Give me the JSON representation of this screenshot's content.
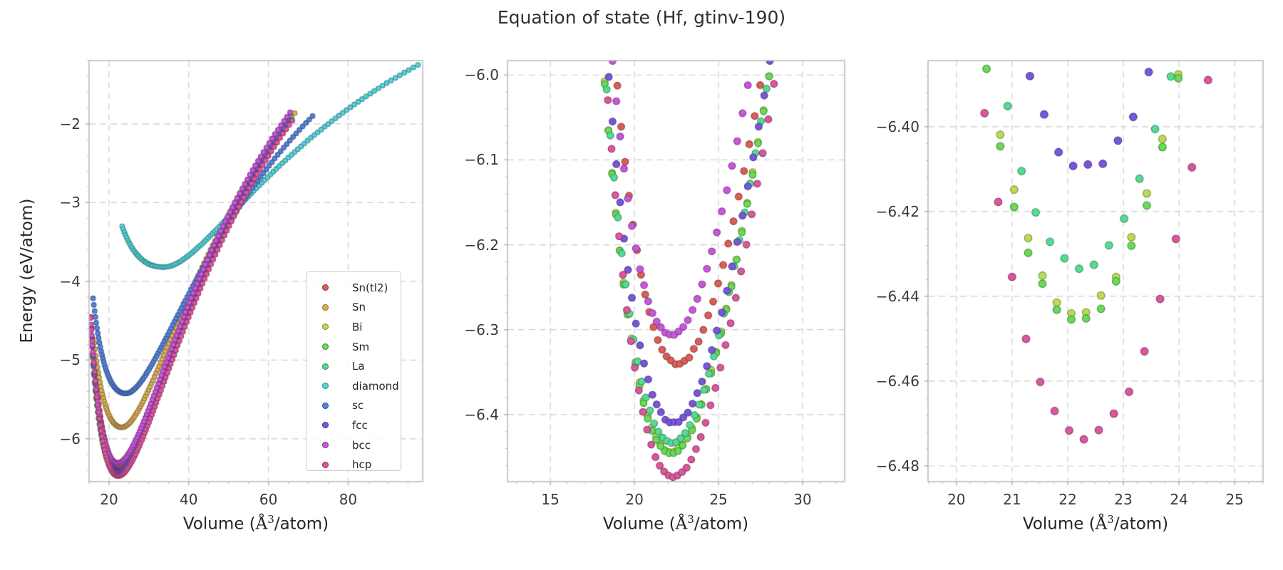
{
  "title": "Equation of state (Hf, gtinv-190)",
  "colors": {
    "background": "#ffffff",
    "text": "#262626",
    "grid": "#cdcdcd",
    "spine": "#b8b8b8",
    "tick_mark": "#a8a8a8"
  },
  "chart_data": {
    "type": "scatter",
    "title": "Equation of state (Hf, gtinv-190)",
    "ylabel": "Energy (eV/atom)",
    "xlabel": "Volume (Å³/atom)",
    "xlabel_parts": {
      "pre": "Volume (",
      "ang": "Å",
      "sup": "3",
      "post": "/atom)"
    },
    "grid": "dashed, on major ticks",
    "legend": {
      "location": "lower right of first subplot",
      "entries": [
        "Sn(tl2)",
        "Sn",
        "Bi",
        "Sm",
        "La",
        "diamond",
        "sc",
        "fcc",
        "bcc",
        "hcp"
      ]
    },
    "sampling": {
      "volume_step_pct": 1.2,
      "noise_amp_eV": 0.0012
    },
    "series": [
      {
        "name": "Sn(tl2)",
        "color": "#db5f57",
        "V0": 22.6,
        "E0": -6.34,
        "CL": 9.0,
        "CR": 10.4,
        "V_start": 15.5,
        "V_end": 66.2
      },
      {
        "name": "Sn",
        "color": "#dbae57",
        "V0": 23.2,
        "E0": -5.855,
        "CL": 6.0,
        "CR": 9.4,
        "V_start": 16.3,
        "V_end": 66.8
      },
      {
        "name": "Bi",
        "color": "#b9db57",
        "V0": 22.2,
        "E0": -6.444,
        "CL": 9.2,
        "CR": 10.3,
        "V_start": 15.8,
        "V_end": 65.8
      },
      {
        "name": "Sm",
        "color": "#69db57",
        "V0": 22.2,
        "E0": -6.446,
        "CL": 9.2,
        "CR": 10.3,
        "V_start": 15.8,
        "V_end": 65.8
      },
      {
        "name": "La",
        "color": "#57db94",
        "V0": 22.25,
        "E0": -6.4335,
        "CL": 9.2,
        "CR": 10.3,
        "V_start": 15.9,
        "V_end": 65.9
      },
      {
        "name": "diamond",
        "color": "#57d3db",
        "V0": 33.7,
        "E0": -3.82,
        "CL": 2.6,
        "CR": 6.0,
        "V_start": 23.3,
        "V_end": 98.5
      },
      {
        "name": "sc",
        "color": "#5784db",
        "V0": 24.2,
        "E0": -5.425,
        "CL": 4.6,
        "CR": 8.1,
        "V_start": 16.0,
        "V_end": 71.5
      },
      {
        "name": "fcc",
        "color": "#7957db",
        "V0": 22.35,
        "E0": -6.41,
        "CL": 9.3,
        "CR": 10.3,
        "V_start": 15.45,
        "V_end": 66.0
      },
      {
        "name": "bcc",
        "color": "#c957db",
        "V0": 22.2,
        "E0": -6.306,
        "CL": 9.2,
        "CR": 10.2,
        "V_start": 15.45,
        "V_end": 65.6
      },
      {
        "name": "hcp",
        "color": "#db579e",
        "V0": 22.3,
        "E0": -6.474,
        "CL": 10.0,
        "CR": 10.3,
        "V_start": 15.4,
        "V_end": 66.4
      }
    ],
    "eos_model": "E(V) = E0 + C*(V0/V - 1)^2 with C = CL for V<V0, CR for V>=V0",
    "subplots": [
      {
        "x_range": [
          15.0,
          98.7
        ],
        "y_range": [
          -6.545,
          -1.196
        ],
        "x_ticks": [
          20,
          40,
          60,
          80
        ],
        "x_tick_labels": [
          "20",
          "40",
          "60",
          "80"
        ],
        "x_minor": 5,
        "y_ticks": [
          -2,
          -3,
          -4,
          -5,
          -6
        ],
        "y_tick_labels": [
          "−2",
          "−3",
          "−4",
          "−5",
          "−6"
        ],
        "y_minor": 0.2,
        "has_ylabel": true,
        "has_legend": true
      },
      {
        "x_range": [
          12.45,
          32.5
        ],
        "y_range": [
          -6.479,
          -5.983
        ],
        "x_ticks": [
          15,
          20,
          25,
          30
        ],
        "x_tick_labels": [
          "15",
          "20",
          "25",
          "30"
        ],
        "x_minor": 1,
        "y_ticks": [
          -6.0,
          -6.1,
          -6.2,
          -6.3,
          -6.4
        ],
        "y_tick_labels": [
          "−6.0",
          "−6.1",
          "−6.2",
          "−6.3",
          "−6.4"
        ],
        "y_minor": 0.02,
        "has_ylabel": false,
        "has_legend": false
      },
      {
        "x_range": [
          19.49,
          25.51
        ],
        "y_range": [
          -6.4837,
          -6.3844
        ],
        "x_ticks": [
          20,
          21,
          22,
          23,
          24,
          25
        ],
        "x_tick_labels": [
          "20",
          "21",
          "22",
          "23",
          "24",
          "25"
        ],
        "x_minor": 0.25,
        "y_ticks": [
          -6.4,
          -6.42,
          -6.44,
          -6.46,
          -6.48
        ],
        "y_tick_labels": [
          "−6.40",
          "−6.42",
          "−6.44",
          "−6.46",
          "−6.48"
        ],
        "y_minor": 0.004,
        "has_ylabel": false,
        "has_legend": false
      }
    ]
  }
}
